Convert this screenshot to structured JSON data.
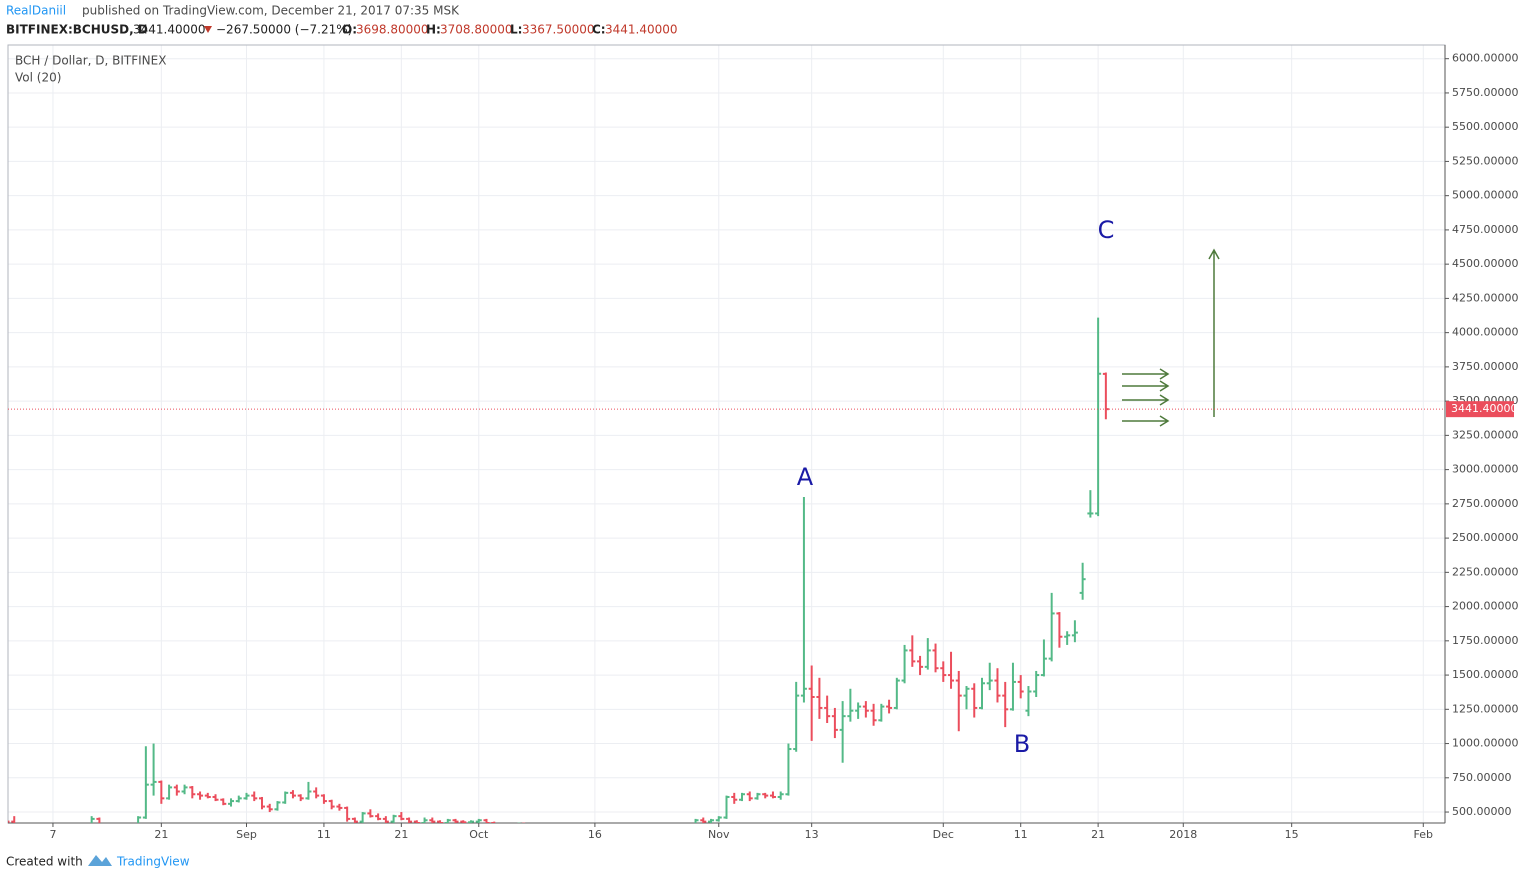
{
  "header": {
    "author": "RealDaniil",
    "published": "published on TradingView.com, December 21, 2017 07:35 MSK",
    "symbol": "BITFINEX:BCHUSD, D",
    "price": "3441.40000",
    "change": "−267.50000 (−7.21%)",
    "open_label": "O:",
    "open": "3698.80000",
    "high_label": "H:",
    "high": "3708.80000",
    "low_label": "L:",
    "low": "3367.50000",
    "close_label": "C:",
    "close": "3441.40000"
  },
  "chart_data": {
    "type": "ohlc",
    "title": "BCH / Dollar, D, BITFINEX",
    "subtitle": "Vol (20)",
    "up_color": "#53b987",
    "down_color": "#eb4d5c",
    "grid": true,
    "ylim": [
      420,
      6100
    ],
    "yticks": [
      {
        "value": 500,
        "label": "500.00000"
      },
      {
        "value": 750,
        "label": "750.00000"
      },
      {
        "value": 1000,
        "label": "1000.00000"
      },
      {
        "value": 1250,
        "label": "1250.00000"
      },
      {
        "value": 1500,
        "label": "1500.00000"
      },
      {
        "value": 1750,
        "label": "1750.00000"
      },
      {
        "value": 2000,
        "label": "2000.00000"
      },
      {
        "value": 2250,
        "label": "2250.00000"
      },
      {
        "value": 2500,
        "label": "2500.00000"
      },
      {
        "value": 2750,
        "label": "2750.00000"
      },
      {
        "value": 3000,
        "label": "3000.00000"
      },
      {
        "value": 3250,
        "label": "3250.00000"
      },
      {
        "value": 3500,
        "label": "3500.00000"
      },
      {
        "value": 3750,
        "label": "3750.00000"
      },
      {
        "value": 4000,
        "label": "4000.00000"
      },
      {
        "value": 4250,
        "label": "4250.00000"
      },
      {
        "value": 4500,
        "label": "4500.00000"
      },
      {
        "value": 4750,
        "label": "4750.00000"
      },
      {
        "value": 5000,
        "label": "5000.00000"
      },
      {
        "value": 5250,
        "label": "5250.00000"
      },
      {
        "value": 5500,
        "label": "5500.00000"
      },
      {
        "value": 5750,
        "label": "5750.00000"
      },
      {
        "value": 6000,
        "label": "6000.00000"
      }
    ],
    "last_price": {
      "value": 3441.4,
      "label": "3441.40000"
    },
    "annotations": [
      "A",
      "B",
      "C"
    ],
    "categories": [
      null,
      null,
      null,
      null,
      null,
      null,
      "7",
      null,
      null,
      null,
      null,
      null,
      null,
      null,
      null,
      null,
      null,
      null,
      null,
      null,
      "21",
      null,
      null,
      null,
      null,
      null,
      null,
      null,
      null,
      null,
      null,
      "Sep",
      null,
      null,
      null,
      null,
      null,
      null,
      null,
      null,
      null,
      "11",
      null,
      null,
      null,
      null,
      null,
      null,
      null,
      null,
      null,
      "21",
      null,
      null,
      null,
      null,
      null,
      null,
      null,
      null,
      null,
      "Oct",
      null,
      null,
      null,
      null,
      null,
      null,
      null,
      null,
      null,
      null,
      null,
      null,
      null,
      null,
      "16",
      null,
      null,
      null,
      null,
      null,
      null,
      null,
      null,
      null,
      null,
      null,
      null,
      null,
      null,
      null,
      "Nov",
      null,
      null,
      null,
      null,
      null,
      null,
      null,
      null,
      null,
      null,
      null,
      "13",
      null,
      null,
      null,
      null,
      null,
      null,
      null,
      null,
      null,
      null,
      null,
      null,
      null,
      null,
      null,
      null,
      "Dec",
      null,
      null,
      null,
      null,
      null,
      null,
      null,
      null,
      null,
      "11",
      null,
      null,
      null,
      null,
      null,
      null,
      null,
      null,
      null,
      "21",
      null,
      null,
      null,
      null,
      null,
      null,
      null,
      null,
      null,
      null,
      "2018",
      null,
      null,
      null,
      null,
      null,
      null,
      null,
      null,
      null,
      null,
      null,
      null,
      null,
      "15",
      null,
      null,
      null,
      null,
      null,
      null,
      null,
      null,
      null,
      null,
      null,
      null,
      null,
      null,
      null,
      null,
      "Feb"
    ],
    "values": [
      [
        550,
        690,
        420,
        430
      ],
      [
        430,
        470,
        330,
        380
      ],
      [
        380,
        420,
        330,
        360
      ],
      [
        360,
        400,
        340,
        370
      ],
      [
        370,
        400,
        320,
        340
      ],
      [
        340,
        360,
        280,
        300
      ],
      [
        300,
        330,
        270,
        310
      ],
      [
        310,
        330,
        290,
        300
      ],
      [
        300,
        320,
        290,
        305
      ],
      [
        305,
        330,
        295,
        320
      ],
      [
        320,
        380,
        310,
        370
      ],
      [
        370,
        470,
        360,
        450
      ],
      [
        450,
        460,
        380,
        400
      ],
      [
        400,
        420,
        360,
        380
      ],
      [
        380,
        400,
        300,
        310
      ],
      [
        310,
        330,
        290,
        300
      ],
      [
        300,
        330,
        290,
        310
      ],
      [
        310,
        470,
        300,
        460
      ],
      [
        460,
        980,
        450,
        700
      ],
      [
        700,
        1000,
        620,
        720
      ],
      [
        720,
        730,
        560,
        600
      ],
      [
        600,
        700,
        590,
        680
      ],
      [
        680,
        700,
        620,
        650
      ],
      [
        650,
        700,
        630,
        680
      ],
      [
        680,
        690,
        600,
        630
      ],
      [
        630,
        650,
        590,
        620
      ],
      [
        620,
        640,
        600,
        610
      ],
      [
        610,
        630,
        580,
        590
      ],
      [
        590,
        600,
        550,
        560
      ],
      [
        560,
        600,
        540,
        580
      ],
      [
        580,
        620,
        570,
        600
      ],
      [
        600,
        640,
        590,
        620
      ],
      [
        620,
        650,
        580,
        600
      ],
      [
        600,
        610,
        520,
        540
      ],
      [
        540,
        560,
        500,
        520
      ],
      [
        520,
        580,
        510,
        570
      ],
      [
        570,
        650,
        560,
        640
      ],
      [
        640,
        660,
        600,
        620
      ],
      [
        620,
        630,
        580,
        600
      ],
      [
        600,
        720,
        590,
        650
      ],
      [
        650,
        680,
        600,
        620
      ],
      [
        620,
        630,
        560,
        580
      ],
      [
        580,
        590,
        520,
        540
      ],
      [
        540,
        560,
        510,
        530
      ],
      [
        530,
        540,
        430,
        450
      ],
      [
        450,
        460,
        400,
        430
      ],
      [
        430,
        500,
        420,
        490
      ],
      [
        490,
        520,
        460,
        470
      ],
      [
        470,
        490,
        440,
        450
      ],
      [
        450,
        470,
        420,
        430
      ],
      [
        430,
        480,
        420,
        470
      ],
      [
        470,
        500,
        440,
        450
      ],
      [
        450,
        460,
        420,
        430
      ],
      [
        430,
        440,
        400,
        420
      ],
      [
        420,
        460,
        410,
        440
      ],
      [
        440,
        460,
        420,
        430
      ],
      [
        430,
        440,
        410,
        420
      ],
      [
        420,
        450,
        415,
        440
      ],
      [
        440,
        450,
        420,
        430
      ],
      [
        430,
        440,
        415,
        425
      ],
      [
        425,
        440,
        415,
        430
      ],
      [
        430,
        450,
        420,
        440
      ],
      [
        440,
        450,
        410,
        420
      ],
      [
        420,
        430,
        400,
        410
      ],
      [
        410,
        420,
        390,
        400
      ],
      [
        400,
        420,
        390,
        410
      ],
      [
        410,
        420,
        400,
        415
      ],
      [
        415,
        420,
        395,
        400
      ],
      [
        400,
        410,
        380,
        390
      ],
      [
        390,
        400,
        350,
        360
      ],
      [
        360,
        370,
        320,
        330
      ],
      [
        330,
        340,
        300,
        320
      ],
      [
        320,
        330,
        300,
        310
      ],
      [
        310,
        340,
        300,
        330
      ],
      [
        330,
        350,
        320,
        340
      ],
      [
        340,
        350,
        320,
        330
      ],
      [
        330,
        340,
        310,
        320
      ],
      [
        320,
        330,
        300,
        310
      ],
      [
        310,
        330,
        300,
        320
      ],
      [
        320,
        340,
        310,
        330
      ],
      [
        330,
        340,
        310,
        320
      ],
      [
        320,
        340,
        310,
        330
      ],
      [
        330,
        340,
        320,
        335
      ],
      [
        335,
        345,
        325,
        330
      ],
      [
        330,
        340,
        320,
        325
      ],
      [
        325,
        350,
        320,
        345
      ],
      [
        345,
        360,
        330,
        340
      ],
      [
        340,
        350,
        320,
        330
      ],
      [
        330,
        340,
        320,
        335
      ],
      [
        335,
        450,
        330,
        440
      ],
      [
        440,
        460,
        400,
        430
      ],
      [
        430,
        450,
        420,
        440
      ],
      [
        440,
        470,
        430,
        460
      ],
      [
        460,
        620,
        450,
        610
      ],
      [
        610,
        640,
        560,
        590
      ],
      [
        590,
        640,
        580,
        630
      ],
      [
        630,
        650,
        580,
        600
      ],
      [
        600,
        640,
        590,
        630
      ],
      [
        630,
        640,
        600,
        620
      ],
      [
        620,
        650,
        600,
        610
      ],
      [
        610,
        650,
        590,
        630
      ],
      [
        630,
        1000,
        620,
        960
      ],
      [
        960,
        1450,
        940,
        1350
      ],
      [
        1350,
        2800,
        1300,
        1400
      ],
      [
        1400,
        1570,
        1020,
        1340
      ],
      [
        1340,
        1480,
        1180,
        1260
      ],
      [
        1260,
        1350,
        1150,
        1200
      ],
      [
        1200,
        1260,
        1040,
        1100
      ],
      [
        1100,
        1310,
        860,
        1200
      ],
      [
        1200,
        1400,
        1160,
        1240
      ],
      [
        1240,
        1300,
        1180,
        1270
      ],
      [
        1270,
        1310,
        1190,
        1240
      ],
      [
        1240,
        1290,
        1130,
        1170
      ],
      [
        1170,
        1290,
        1160,
        1270
      ],
      [
        1270,
        1320,
        1220,
        1260
      ],
      [
        1260,
        1480,
        1250,
        1460
      ],
      [
        1460,
        1720,
        1440,
        1680
      ],
      [
        1680,
        1790,
        1560,
        1600
      ],
      [
        1600,
        1640,
        1500,
        1560
      ],
      [
        1560,
        1770,
        1540,
        1680
      ],
      [
        1680,
        1730,
        1520,
        1550
      ],
      [
        1550,
        1600,
        1450,
        1500
      ],
      [
        1500,
        1670,
        1400,
        1460
      ],
      [
        1460,
        1530,
        1090,
        1350
      ],
      [
        1350,
        1420,
        1250,
        1400
      ],
      [
        1400,
        1440,
        1190,
        1260
      ],
      [
        1260,
        1480,
        1250,
        1440
      ],
      [
        1440,
        1590,
        1390,
        1460
      ],
      [
        1460,
        1550,
        1300,
        1350
      ],
      [
        1350,
        1450,
        1120,
        1250
      ],
      [
        1250,
        1590,
        1240,
        1450
      ],
      [
        1450,
        1500,
        1330,
        1380
      ],
      [
        1240,
        1420,
        1200,
        1380
      ],
      [
        1380,
        1530,
        1340,
        1500
      ],
      [
        1500,
        1760,
        1490,
        1620
      ],
      [
        1620,
        2100,
        1600,
        1950
      ],
      [
        1950,
        1960,
        1700,
        1780
      ],
      [
        1780,
        1820,
        1720,
        1790
      ],
      [
        1790,
        1900,
        1740,
        1810
      ],
      [
        2100,
        2320,
        2050,
        2200
      ],
      [
        2680,
        2850,
        2650,
        2680
      ],
      [
        2680,
        4110,
        2660,
        3700
      ],
      [
        3698.8,
        3708.8,
        3367.5,
        3441.4
      ],
      null,
      null,
      null,
      null,
      null,
      null,
      null,
      null,
      null,
      null,
      null,
      null,
      null,
      null,
      null,
      null,
      null,
      null,
      null,
      null,
      null,
      null,
      null,
      null,
      null,
      null,
      null,
      null,
      null,
      null,
      null,
      null,
      null,
      null,
      null,
      null,
      null,
      null,
      null,
      null,
      null,
      null
    ]
  },
  "footer": {
    "created": "Created with",
    "brand": "TradingView"
  }
}
